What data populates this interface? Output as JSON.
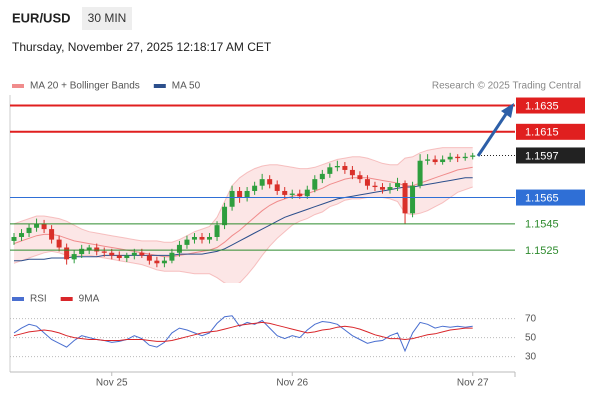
{
  "header": {
    "symbol": "EUR/USD",
    "timeframe": "30 MIN",
    "datetime": "Thursday, November 27, 2025 12:18:17 AM CET",
    "credit": "Research © 2025 Trading Central"
  },
  "chart_data": [
    {
      "type": "candlestick",
      "ylim": [
        1.15,
        1.1643
      ],
      "up_color": "#2e9e3e",
      "down_color": "#d9302a",
      "ohlc": [
        [
          1.1532,
          1.1538,
          1.1529,
          1.1535
        ],
        [
          1.1535,
          1.1541,
          1.1532,
          1.1538
        ],
        [
          1.1538,
          1.1545,
          1.1535,
          1.1542
        ],
        [
          1.1542,
          1.1549,
          1.1539,
          1.1545
        ],
        [
          1.1545,
          1.1548,
          1.1538,
          1.1541
        ],
        [
          1.1541,
          1.1544,
          1.153,
          1.1533
        ],
        [
          1.1533,
          1.1536,
          1.1524,
          1.1527
        ],
        [
          1.1527,
          1.153,
          1.1514,
          1.1518
        ],
        [
          1.1518,
          1.1525,
          1.1515,
          1.1522
        ],
        [
          1.1522,
          1.1529,
          1.1519,
          1.1526
        ],
        [
          1.1525,
          1.1529,
          1.1522,
          1.1527
        ],
        [
          1.1527,
          1.153,
          1.1521,
          1.1524
        ],
        [
          1.1524,
          1.1527,
          1.152,
          1.1523
        ],
        [
          1.1523,
          1.1526,
          1.1518,
          1.1521
        ],
        [
          1.1521,
          1.1524,
          1.1517,
          1.1519
        ],
        [
          1.1519,
          1.1523,
          1.1516,
          1.1521
        ],
        [
          1.1521,
          1.1526,
          1.1518,
          1.1523
        ],
        [
          1.1523,
          1.1526,
          1.1519,
          1.1521
        ],
        [
          1.1521,
          1.1523,
          1.1514,
          1.1517
        ],
        [
          1.1517,
          1.152,
          1.1512,
          1.1515
        ],
        [
          1.1515,
          1.152,
          1.1512,
          1.1517
        ],
        [
          1.1517,
          1.1526,
          1.1515,
          1.1523
        ],
        [
          1.1523,
          1.1532,
          1.152,
          1.1529
        ],
        [
          1.1529,
          1.1536,
          1.1526,
          1.1533
        ],
        [
          1.1533,
          1.1538,
          1.153,
          1.1535
        ],
        [
          1.1535,
          1.1538,
          1.153,
          1.1533
        ],
        [
          1.1533,
          1.1538,
          1.153,
          1.1535
        ],
        [
          1.1535,
          1.1547,
          1.1532,
          1.1544
        ],
        [
          1.1544,
          1.1561,
          1.1541,
          1.1558
        ],
        [
          1.1558,
          1.1574,
          1.1555,
          1.157
        ],
        [
          1.157,
          1.1573,
          1.1561,
          1.1565
        ],
        [
          1.1565,
          1.1573,
          1.1562,
          1.157
        ],
        [
          1.157,
          1.1577,
          1.1567,
          1.1574
        ],
        [
          1.1574,
          1.1583,
          1.1571,
          1.1579
        ],
        [
          1.1579,
          1.1582,
          1.1572,
          1.1575
        ],
        [
          1.1575,
          1.1578,
          1.1567,
          1.157
        ],
        [
          1.157,
          1.1573,
          1.1564,
          1.1567
        ],
        [
          1.1567,
          1.1571,
          1.1564,
          1.1568
        ],
        [
          1.1568,
          1.1571,
          1.1564,
          1.1566
        ],
        [
          1.1566,
          1.1574,
          1.1564,
          1.1571
        ],
        [
          1.1571,
          1.1582,
          1.1569,
          1.1579
        ],
        [
          1.1579,
          1.1586,
          1.1576,
          1.1583
        ],
        [
          1.1583,
          1.1591,
          1.158,
          1.1588
        ],
        [
          1.1588,
          1.1593,
          1.1585,
          1.1589
        ],
        [
          1.1589,
          1.1592,
          1.1583,
          1.1586
        ],
        [
          1.1586,
          1.1589,
          1.1579,
          1.1582
        ],
        [
          1.1582,
          1.1585,
          1.1576,
          1.1579
        ],
        [
          1.1579,
          1.1582,
          1.1571,
          1.1574
        ],
        [
          1.1574,
          1.1577,
          1.157,
          1.1573
        ],
        [
          1.1573,
          1.1576,
          1.1568,
          1.1571
        ],
        [
          1.1571,
          1.1576,
          1.1568,
          1.1573
        ],
        [
          1.1573,
          1.158,
          1.157,
          1.1576
        ],
        [
          1.1576,
          1.1578,
          1.1545,
          1.1553
        ],
        [
          1.1553,
          1.1577,
          1.155,
          1.1574
        ],
        [
          1.1574,
          1.1598,
          1.1572,
          1.1593
        ],
        [
          1.1593,
          1.1598,
          1.159,
          1.1594
        ],
        [
          1.1594,
          1.1597,
          1.159,
          1.1592
        ],
        [
          1.1592,
          1.1597,
          1.159,
          1.1594
        ],
        [
          1.1594,
          1.1599,
          1.1592,
          1.1596
        ],
        [
          1.1596,
          1.1598,
          1.1592,
          1.1595
        ],
        [
          1.1595,
          1.1599,
          1.1593,
          1.1596
        ],
        [
          1.1596,
          1.1599,
          1.1594,
          1.1597
        ]
      ],
      "series": [
        {
          "name": "MA 20 + Bollinger Bands",
          "color": "#f08c8c",
          "values": [
            1.153,
            1.1532,
            1.1534,
            1.1536,
            1.1537,
            1.1537,
            1.1536,
            1.1534,
            1.1532,
            1.1531,
            1.153,
            1.1529,
            1.1528,
            1.1527,
            1.1526,
            1.1525,
            1.1524,
            1.1523,
            1.1522,
            1.1521,
            1.152,
            1.152,
            1.1521,
            1.1522,
            1.1523,
            1.1524,
            1.1525,
            1.1527,
            1.1531,
            1.1536,
            1.154,
            1.1545,
            1.155,
            1.1555,
            1.1559,
            1.1562,
            1.1564,
            1.1566,
            1.1567,
            1.1568,
            1.157,
            1.1572,
            1.1575,
            1.1577,
            1.1579,
            1.158,
            1.158,
            1.158,
            1.1579,
            1.1578,
            1.1577,
            1.1576,
            1.1574,
            1.1574,
            1.1576,
            1.1578,
            1.158,
            1.1582,
            1.1584,
            1.1586,
            1.1587,
            1.1588
          ],
          "upper": [
            1.1545,
            1.1547,
            1.1549,
            1.1551,
            1.1551,
            1.155,
            1.1549,
            1.1547,
            1.1544,
            1.1541,
            1.1539,
            1.1538,
            1.1537,
            1.1536,
            1.1535,
            1.1534,
            1.1533,
            1.1532,
            1.1532,
            1.1532,
            1.1531,
            1.1531,
            1.1533,
            1.1536,
            1.1539,
            1.1541,
            1.1543,
            1.155,
            1.1562,
            1.1574,
            1.158,
            1.1584,
            1.1587,
            1.1589,
            1.159,
            1.159,
            1.1589,
            1.1588,
            1.1587,
            1.1587,
            1.1588,
            1.159,
            1.1592,
            1.1594,
            1.1595,
            1.1596,
            1.1596,
            1.1595,
            1.1593,
            1.1591,
            1.159,
            1.159,
            1.1595,
            1.1596,
            1.1599,
            1.1601,
            1.1602,
            1.1603,
            1.1603,
            1.1603,
            1.1603,
            1.1603
          ],
          "lower": [
            1.1515,
            1.1517,
            1.1519,
            1.1521,
            1.1523,
            1.1524,
            1.1523,
            1.1521,
            1.152,
            1.1521,
            1.1521,
            1.152,
            1.1519,
            1.1518,
            1.1517,
            1.1516,
            1.1515,
            1.1514,
            1.1512,
            1.151,
            1.1509,
            1.1509,
            1.1509,
            1.1508,
            1.1507,
            1.1507,
            1.1507,
            1.1504,
            1.15,
            1.1498,
            1.15,
            1.1506,
            1.1513,
            1.1521,
            1.1528,
            1.1534,
            1.1539,
            1.1544,
            1.1547,
            1.1549,
            1.1552,
            1.1554,
            1.1558,
            1.156,
            1.1563,
            1.1564,
            1.1564,
            1.1565,
            1.1565,
            1.1565,
            1.1564,
            1.1562,
            1.1553,
            1.1552,
            1.1553,
            1.1555,
            1.1558,
            1.1561,
            1.1565,
            1.1569,
            1.1571,
            1.1573
          ]
        },
        {
          "name": "MA 50",
          "color": "#2c4f8c",
          "values": [
            1.1517,
            1.1517,
            1.1518,
            1.1518,
            1.1518,
            1.1519,
            1.1519,
            1.1519,
            1.152,
            1.152,
            1.152,
            1.152,
            1.1521,
            1.1521,
            1.1521,
            1.1521,
            1.1521,
            1.1521,
            1.1521,
            1.1521,
            1.1521,
            1.1521,
            1.1522,
            1.1522,
            1.1522,
            1.1522,
            1.1523,
            1.1524,
            1.1526,
            1.1529,
            1.1532,
            1.1535,
            1.1538,
            1.1541,
            1.1544,
            1.1547,
            1.155,
            1.1552,
            1.1554,
            1.1556,
            1.1558,
            1.156,
            1.1562,
            1.1564,
            1.1565,
            1.1566,
            1.1567,
            1.1568,
            1.1569,
            1.157,
            1.1571,
            1.1572,
            1.1573,
            1.1573,
            1.1574,
            1.1575,
            1.1576,
            1.1577,
            1.1578,
            1.1579,
            1.158,
            1.158
          ]
        }
      ],
      "levels": [
        {
          "value": 1.1635,
          "color": "#e01f1f",
          "style": "box",
          "line": "solid"
        },
        {
          "value": 1.1615,
          "color": "#e01f1f",
          "style": "box",
          "line": "solid"
        },
        {
          "value": 1.1597,
          "color": "#222222",
          "style": "box",
          "line": "dotted"
        },
        {
          "value": 1.1565,
          "color": "#2f6fd6",
          "style": "box",
          "line": "solid"
        },
        {
          "value": 1.1545,
          "color": "#2e8b2e",
          "style": "text",
          "line": "solid"
        },
        {
          "value": 1.1525,
          "color": "#2e8b2e",
          "style": "text",
          "line": "solid"
        }
      ]
    },
    {
      "type": "line",
      "ylim": [
        18,
        77
      ],
      "yticks": [
        70,
        50,
        30
      ],
      "categories": [
        null,
        null,
        null,
        null,
        null,
        null,
        null,
        null,
        null,
        null,
        null,
        null,
        null,
        "Nov 25",
        null,
        null,
        null,
        null,
        null,
        null,
        null,
        null,
        null,
        null,
        null,
        null,
        null,
        null,
        null,
        null,
        null,
        null,
        null,
        null,
        null,
        null,
        null,
        "Nov 26",
        null,
        null,
        null,
        null,
        null,
        null,
        null,
        null,
        null,
        null,
        null,
        null,
        null,
        null,
        null,
        null,
        null,
        null,
        null,
        null,
        null,
        null,
        null,
        "Nov 27"
      ],
      "series": [
        {
          "name": "RSI",
          "color": "#4a6fd0",
          "values": [
            55,
            60,
            64,
            62,
            55,
            48,
            44,
            40,
            47,
            52,
            50,
            48,
            47,
            45,
            46,
            48,
            52,
            49,
            42,
            40,
            45,
            55,
            60,
            58,
            55,
            52,
            55,
            65,
            72,
            73,
            62,
            66,
            64,
            68,
            60,
            52,
            49,
            52,
            50,
            58,
            64,
            67,
            66,
            64,
            58,
            52,
            48,
            44,
            46,
            47,
            52,
            55,
            36,
            55,
            66,
            64,
            60,
            62,
            61,
            62,
            61,
            62
          ]
        },
        {
          "name": "9MA",
          "color": "#d9262a",
          "values": [
            52,
            54,
            56,
            57,
            58,
            57,
            55,
            52,
            50,
            49,
            48,
            48,
            47,
            47,
            47,
            48,
            48,
            48,
            47,
            46,
            46,
            47,
            49,
            51,
            53,
            55,
            56,
            57,
            59,
            61,
            63,
            64,
            65,
            66,
            65,
            63,
            61,
            59,
            57,
            55,
            56,
            58,
            59,
            61,
            62,
            61,
            59,
            56,
            53,
            51,
            49,
            49,
            48,
            49,
            51,
            53,
            54,
            56,
            58,
            59,
            60,
            60
          ]
        }
      ]
    }
  ]
}
